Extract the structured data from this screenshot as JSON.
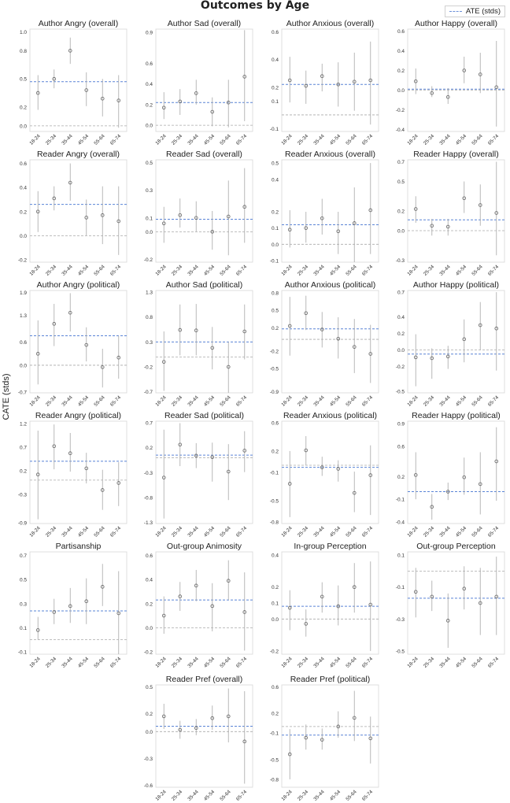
{
  "figure": {
    "title": "Outcomes by Age",
    "ylabel": "CATE (stds)",
    "legend_label": "ATE (stds)",
    "colors": {
      "ate_line": "#5a84d6",
      "zero_line": "#aaaaaa",
      "marker": "#666666",
      "error_bar": "#b0b0b0",
      "frame": "#d7d7d7"
    }
  },
  "chart_data": [
    {
      "type": "scatter",
      "title": "Author Angry (overall)",
      "categories": [
        "18-24",
        "25-34",
        "35-44",
        "45-54",
        "55-64",
        "65-74"
      ],
      "values": [
        0.35,
        0.5,
        0.8,
        0.38,
        0.29,
        0.27
      ],
      "ci_low": [
        0.17,
        0.4,
        0.66,
        0.21,
        0.1,
        -0.02
      ],
      "ci_high": [
        0.54,
        0.6,
        0.94,
        0.57,
        0.5,
        0.54
      ],
      "ate": 0.47,
      "ylim": [
        -0.06,
        1.03
      ],
      "yticks": [
        "0.0",
        "0.2",
        "0.5",
        "0.8",
        "1.0"
      ],
      "ytick_values": [
        0.0,
        0.2,
        0.5,
        0.8,
        1.0
      ]
    },
    {
      "type": "scatter",
      "title": "Author Sad (overall)",
      "categories": [
        "18-24",
        "25-34",
        "35-44",
        "45-54",
        "55-64",
        "65-74"
      ],
      "values": [
        0.17,
        0.23,
        0.31,
        0.13,
        0.22,
        0.47
      ],
      "ci_low": [
        0.06,
        0.1,
        0.2,
        -0.01,
        -0.02,
        0.04
      ],
      "ci_high": [
        0.32,
        0.35,
        0.44,
        0.27,
        0.44,
        0.92
      ],
      "ate": 0.22,
      "ylim": [
        -0.06,
        0.93
      ],
      "yticks": [
        "0.0",
        "0.2",
        "0.4",
        "0.6",
        "0.9"
      ],
      "ytick_values": [
        0.0,
        0.2,
        0.4,
        0.6,
        0.9
      ]
    },
    {
      "type": "scatter",
      "title": "Author Anxious (overall)",
      "categories": [
        "18-24",
        "25-34",
        "35-44",
        "45-54",
        "55-64",
        "65-74"
      ],
      "values": [
        0.25,
        0.21,
        0.28,
        0.22,
        0.24,
        0.25
      ],
      "ci_low": [
        0.09,
        0.08,
        0.17,
        0.06,
        0.03,
        -0.07
      ],
      "ci_high": [
        0.42,
        0.32,
        0.37,
        0.38,
        0.45,
        0.53
      ],
      "ate": 0.22,
      "ylim": [
        -0.12,
        0.62
      ],
      "yticks": [
        "-0.1",
        "0.1",
        "0.2",
        "0.4",
        "0.6"
      ],
      "ytick_values": [
        -0.1,
        0.1,
        0.2,
        0.4,
        0.6
      ]
    },
    {
      "type": "scatter",
      "title": "Author Happy (overall)",
      "categories": [
        "18-24",
        "25-34",
        "35-44",
        "45-54",
        "55-64",
        "65-74"
      ],
      "values": [
        0.09,
        -0.03,
        -0.07,
        0.2,
        0.16,
        0.03
      ],
      "ci_low": [
        -0.04,
        -0.07,
        -0.14,
        0.07,
        -0.03,
        -0.37
      ],
      "ci_high": [
        0.22,
        0.04,
        0.02,
        0.34,
        0.38,
        0.5
      ],
      "ate": 0.01,
      "ylim": [
        -0.42,
        0.62
      ],
      "yticks": [
        "-0.4",
        "-0.2",
        "0.0",
        "0.2",
        "0.4",
        "0.6"
      ],
      "ytick_values": [
        -0.4,
        -0.2,
        0.0,
        0.2,
        0.4,
        0.6
      ]
    },
    {
      "type": "scatter",
      "title": "Reader Angry (overall)",
      "categories": [
        "18-24",
        "25-34",
        "35-44",
        "45-54",
        "55-64",
        "65-74"
      ],
      "values": [
        0.2,
        0.31,
        0.44,
        0.15,
        0.17,
        0.12
      ],
      "ci_low": [
        0.03,
        0.21,
        0.29,
        0.0,
        -0.07,
        -0.16
      ],
      "ci_high": [
        0.37,
        0.41,
        0.6,
        0.3,
        0.41,
        0.41
      ],
      "ate": 0.26,
      "ylim": [
        -0.22,
        0.63
      ],
      "yticks": [
        "-0.2",
        "0.0",
        "0.2",
        "0.4",
        "0.6"
      ],
      "ytick_values": [
        -0.2,
        0.0,
        0.2,
        0.4,
        0.6
      ]
    },
    {
      "type": "scatter",
      "title": "Reader Sad (overall)",
      "categories": [
        "18-24",
        "25-34",
        "35-44",
        "45-54",
        "55-64",
        "65-74"
      ],
      "values": [
        0.06,
        0.12,
        0.1,
        0.0,
        0.11,
        0.18
      ],
      "ci_low": [
        -0.08,
        0.03,
        0.0,
        -0.13,
        -0.17,
        -0.08
      ],
      "ci_high": [
        0.18,
        0.24,
        0.22,
        0.15,
        0.37,
        0.46
      ],
      "ate": 0.09,
      "ylim": [
        -0.22,
        0.52
      ],
      "yticks": [
        "-0.2",
        "0.0",
        "0.1",
        "0.3",
        "0.5"
      ],
      "ytick_values": [
        -0.2,
        0.0,
        0.1,
        0.3,
        0.5
      ]
    },
    {
      "type": "scatter",
      "title": "Reader Anxious (overall)",
      "categories": [
        "18-24",
        "25-34",
        "35-44",
        "45-54",
        "55-64",
        "65-74"
      ],
      "values": [
        0.09,
        0.1,
        0.16,
        0.08,
        0.13,
        0.21
      ],
      "ci_low": [
        -0.02,
        0.01,
        0.06,
        -0.06,
        -0.12,
        -0.06
      ],
      "ci_high": [
        0.21,
        0.2,
        0.28,
        0.2,
        0.35,
        0.5
      ],
      "ate": 0.12,
      "ylim": [
        -0.11,
        0.52
      ],
      "yticks": [
        "-0.1",
        "0.0",
        "0.1",
        "0.2",
        "0.4",
        "0.5"
      ],
      "ytick_values": [
        -0.1,
        0.0,
        0.1,
        0.2,
        0.4,
        0.5
      ]
    },
    {
      "type": "scatter",
      "title": "Reader Happy (overall)",
      "categories": [
        "18-24",
        "25-34",
        "35-44",
        "45-54",
        "55-64",
        "65-74"
      ],
      "values": [
        0.22,
        0.05,
        0.04,
        0.33,
        0.26,
        0.18
      ],
      "ci_low": [
        0.08,
        -0.05,
        -0.05,
        0.18,
        0.05,
        -0.25
      ],
      "ci_high": [
        0.35,
        0.12,
        0.12,
        0.5,
        0.47,
        0.7
      ],
      "ate": 0.11,
      "ylim": [
        -0.32,
        0.72
      ],
      "yticks": [
        "-0.3",
        "0.0",
        "0.2",
        "0.5",
        "0.7"
      ],
      "ytick_values": [
        -0.3,
        0.0,
        0.2,
        0.5,
        0.7
      ]
    },
    {
      "type": "scatter",
      "title": "Author Angry (political)",
      "categories": [
        "18-24",
        "25-34",
        "35-44",
        "45-54",
        "55-64",
        "65-74"
      ],
      "values": [
        0.3,
        1.08,
        1.37,
        0.53,
        -0.05,
        0.2
      ],
      "ci_low": [
        -0.5,
        0.5,
        0.88,
        0.1,
        -0.58,
        -0.35
      ],
      "ci_high": [
        1.17,
        1.6,
        1.88,
        0.99,
        0.43,
        0.77
      ],
      "ate": 0.77,
      "ylim": [
        -0.72,
        1.95
      ],
      "yticks": [
        "-0.7",
        "0.0",
        "0.6",
        "1.3",
        "1.9"
      ],
      "ytick_values": [
        -0.7,
        0.0,
        0.6,
        1.3,
        1.9
      ]
    },
    {
      "type": "scatter",
      "title": "Author Sad (political)",
      "categories": [
        "18-24",
        "25-34",
        "35-44",
        "45-54",
        "55-64",
        "65-74"
      ],
      "values": [
        -0.1,
        0.54,
        0.53,
        0.18,
        -0.2,
        0.51
      ],
      "ci_low": [
        -0.68,
        0.03,
        0.03,
        -0.25,
        -0.72,
        -0.05
      ],
      "ci_high": [
        0.51,
        1.05,
        1.06,
        0.6,
        0.3,
        1.05
      ],
      "ate": 0.3,
      "ylim": [
        -0.72,
        1.33
      ],
      "yticks": [
        "-0.7",
        "-0.2",
        "0.3",
        "0.8",
        "1.3"
      ],
      "ytick_values": [
        -0.7,
        -0.2,
        0.3,
        0.8,
        1.3
      ]
    },
    {
      "type": "scatter",
      "title": "Author Anxious (political)",
      "categories": [
        "18-24",
        "25-34",
        "35-44",
        "45-54",
        "55-64",
        "65-74"
      ],
      "values": [
        0.23,
        0.45,
        0.17,
        0.01,
        -0.13,
        -0.25
      ],
      "ci_low": [
        -0.28,
        0.16,
        -0.14,
        -0.33,
        -0.58,
        -0.75
      ],
      "ci_high": [
        0.73,
        0.75,
        0.47,
        0.38,
        0.35,
        0.25
      ],
      "ate": 0.18,
      "ylim": [
        -0.92,
        0.84
      ],
      "yticks": [
        "-0.9",
        "-0.5",
        "-0.2",
        "0.2",
        "0.5",
        "0.8"
      ],
      "ytick_values": [
        -0.9,
        -0.5,
        -0.2,
        0.2,
        0.5,
        0.8
      ]
    },
    {
      "type": "scatter",
      "title": "Author Happy (political)",
      "categories": [
        "18-24",
        "25-34",
        "35-44",
        "45-54",
        "55-64",
        "65-74"
      ],
      "values": [
        -0.09,
        -0.1,
        -0.08,
        0.13,
        0.3,
        0.26
      ],
      "ci_low": [
        -0.44,
        -0.35,
        -0.23,
        -0.15,
        0.0,
        -0.25
      ],
      "ci_high": [
        0.19,
        0.02,
        0.05,
        0.37,
        0.58,
        0.7
      ],
      "ate": -0.05,
      "ylim": [
        -0.52,
        0.72
      ],
      "yticks": [
        "-0.5",
        "-0.2",
        "0.0",
        "0.2",
        "0.4",
        "0.7"
      ],
      "ytick_values": [
        -0.5,
        -0.2,
        0.0,
        0.2,
        0.4,
        0.7
      ]
    },
    {
      "type": "scatter",
      "title": "Reader Angry (political)",
      "categories": [
        "18-24",
        "25-34",
        "35-44",
        "45-54",
        "55-64",
        "65-74"
      ],
      "values": [
        0.12,
        0.72,
        0.57,
        0.25,
        -0.21,
        -0.06
      ],
      "ci_low": [
        -0.83,
        0.23,
        0.18,
        -0.07,
        -0.63,
        -0.55
      ],
      "ci_high": [
        1.05,
        1.18,
        1.0,
        0.58,
        0.22,
        0.38
      ],
      "ate": 0.4,
      "ylim": [
        -0.92,
        1.25
      ],
      "yticks": [
        "-0.9",
        "-0.3",
        "0.2",
        "0.7",
        "1.2"
      ],
      "ytick_values": [
        -0.9,
        -0.3,
        0.2,
        0.7,
        1.2
      ]
    },
    {
      "type": "scatter",
      "title": "Reader Sad (political)",
      "categories": [
        "18-24",
        "25-34",
        "35-44",
        "45-54",
        "55-64",
        "65-74"
      ],
      "values": [
        -0.4,
        0.26,
        0.04,
        0.01,
        -0.28,
        0.14
      ],
      "ci_low": [
        -1.22,
        -0.17,
        -0.21,
        -0.48,
        -0.85,
        -0.29
      ],
      "ci_high": [
        0.56,
        0.69,
        0.29,
        0.3,
        0.27,
        0.53
      ],
      "ate": 0.05,
      "ylim": [
        -1.32,
        0.73
      ],
      "yticks": [
        "-1.3",
        "-0.8",
        "-0.3",
        "0.2",
        "0.7"
      ],
      "ytick_values": [
        -1.3,
        -0.8,
        -0.3,
        0.2,
        0.7
      ]
    },
    {
      "type": "scatter",
      "title": "Reader Anxious (political)",
      "categories": [
        "18-24",
        "25-34",
        "35-44",
        "45-54",
        "55-64",
        "65-74"
      ],
      "values": [
        -0.26,
        0.21,
        -0.03,
        -0.05,
        -0.39,
        -0.14
      ],
      "ci_low": [
        -0.73,
        0.0,
        -0.15,
        -0.23,
        -0.66,
        -0.7
      ],
      "ci_high": [
        0.2,
        0.41,
        0.12,
        0.07,
        -0.09,
        0.28
      ],
      "ate": -0.03,
      "ylim": [
        -0.82,
        0.62
      ],
      "yticks": [
        "-0.8",
        "-0.5",
        "-0.1",
        "0.2",
        "0.6"
      ],
      "ytick_values": [
        -0.8,
        -0.5,
        -0.1,
        0.2,
        0.6
      ]
    },
    {
      "type": "scatter",
      "title": "Reader Happy (political)",
      "categories": [
        "18-24",
        "25-34",
        "35-44",
        "45-54",
        "55-64",
        "65-74"
      ],
      "values": [
        0.22,
        -0.2,
        0.0,
        0.19,
        0.1,
        0.4
      ],
      "ci_low": [
        -0.1,
        -0.37,
        -0.11,
        -0.04,
        -0.3,
        -0.12
      ],
      "ci_high": [
        0.52,
        -0.03,
        0.12,
        0.45,
        0.52,
        0.85
      ],
      "ate": 0.0,
      "ylim": [
        -0.42,
        0.93
      ],
      "yticks": [
        "-0.4",
        "-0.1",
        "0.2",
        "0.6",
        "0.9"
      ],
      "ytick_values": [
        -0.4,
        -0.1,
        0.2,
        0.6,
        0.9
      ]
    },
    {
      "type": "scatter",
      "title": "Partisanship",
      "categories": [
        "18-24",
        "25-34",
        "35-44",
        "45-54",
        "55-64",
        "65-74"
      ],
      "values": [
        0.08,
        0.23,
        0.28,
        0.32,
        0.44,
        0.22
      ],
      "ci_low": [
        0.0,
        0.13,
        0.14,
        0.13,
        0.28,
        -0.12
      ],
      "ci_high": [
        0.19,
        0.34,
        0.43,
        0.51,
        0.63,
        0.57
      ],
      "ate": 0.24,
      "ylim": [
        -0.12,
        0.73
      ],
      "yticks": [
        "-0.1",
        "0.1",
        "0.3",
        "0.5",
        "0.7"
      ],
      "ytick_values": [
        -0.1,
        0.1,
        0.3,
        0.5,
        0.7
      ]
    },
    {
      "type": "scatter",
      "title": "Out-group Animosity",
      "categories": [
        "18-24",
        "25-34",
        "35-44",
        "45-54",
        "55-64",
        "65-74"
      ],
      "values": [
        0.1,
        0.26,
        0.35,
        0.18,
        0.39,
        0.13
      ],
      "ci_low": [
        -0.05,
        0.14,
        0.22,
        -0.03,
        0.23,
        -0.19
      ],
      "ci_high": [
        0.26,
        0.38,
        0.48,
        0.37,
        0.56,
        0.46
      ],
      "ate": 0.23,
      "ylim": [
        -0.22,
        0.63
      ],
      "yticks": [
        "-0.2",
        "0.0",
        "0.2",
        "0.4",
        "0.6"
      ],
      "ytick_values": [
        -0.2,
        0.0,
        0.2,
        0.4,
        0.6
      ]
    },
    {
      "type": "scatter",
      "title": "In-group Perception",
      "categories": [
        "18-24",
        "25-34",
        "35-44",
        "45-54",
        "55-64",
        "65-74"
      ],
      "values": [
        0.07,
        -0.03,
        0.14,
        0.08,
        0.2,
        0.09
      ],
      "ci_low": [
        -0.07,
        -0.11,
        0.04,
        -0.04,
        0.04,
        -0.2
      ],
      "ci_high": [
        0.18,
        0.06,
        0.23,
        0.21,
        0.35,
        0.36
      ],
      "ate": 0.08,
      "ylim": [
        -0.22,
        0.42
      ],
      "yticks": [
        "-0.2",
        "0.0",
        "0.1",
        "0.2",
        "0.4"
      ],
      "ytick_values": [
        -0.2,
        0.0,
        0.1,
        0.2,
        0.4
      ]
    },
    {
      "type": "scatter",
      "title": "Out-group Perception",
      "categories": [
        "18-24",
        "25-34",
        "35-44",
        "45-54",
        "55-64",
        "65-74"
      ],
      "values": [
        -0.13,
        -0.16,
        -0.31,
        -0.11,
        -0.2,
        -0.16
      ],
      "ci_low": [
        -0.29,
        -0.25,
        -0.48,
        -0.24,
        -0.4,
        -0.4
      ],
      "ci_high": [
        0.02,
        -0.06,
        -0.14,
        0.03,
        0.02,
        0.09
      ],
      "ate": -0.17,
      "ylim": [
        -0.52,
        0.12
      ],
      "yticks": [
        "-0.5",
        "-0.3",
        "-0.1",
        "0.1"
      ],
      "ytick_values": [
        -0.5,
        -0.3,
        -0.1,
        0.1
      ]
    },
    {
      "type": "scatter",
      "title": "Reader Pref (overall)",
      "categories": [
        "18-24",
        "25-34",
        "35-44",
        "45-54",
        "55-64",
        "65-74"
      ],
      "values": [
        0.17,
        0.02,
        0.04,
        0.15,
        0.17,
        -0.11
      ],
      "ci_low": [
        0.03,
        -0.08,
        -0.04,
        0.02,
        -0.12,
        -0.58
      ],
      "ci_high": [
        0.31,
        0.12,
        0.14,
        0.29,
        0.48,
        0.45
      ],
      "ate": 0.06,
      "ylim": [
        -0.62,
        0.52
      ],
      "yticks": [
        "-0.6",
        "-0.3",
        "0.0",
        "0.2",
        "0.5"
      ],
      "ytick_values": [
        -0.6,
        -0.3,
        0.0,
        0.2,
        0.5
      ]
    },
    {
      "type": "scatter",
      "title": "Reader Pref (political)",
      "categories": [
        "18-24",
        "25-34",
        "35-44",
        "45-54",
        "55-64",
        "65-74"
      ],
      "values": [
        -0.42,
        -0.17,
        -0.2,
        0.0,
        0.13,
        -0.18
      ],
      "ci_low": [
        -0.8,
        -0.35,
        -0.35,
        -0.17,
        -0.22,
        -0.56
      ],
      "ci_high": [
        -0.04,
        0.03,
        -0.03,
        0.23,
        0.54,
        0.15
      ],
      "ate": -0.13,
      "ylim": [
        -0.92,
        0.63
      ],
      "yticks": [
        "-0.8",
        "-0.5",
        "-0.1",
        "0.2",
        "0.6"
      ],
      "ytick_values": [
        -0.8,
        -0.5,
        -0.1,
        0.2,
        0.6
      ]
    }
  ]
}
